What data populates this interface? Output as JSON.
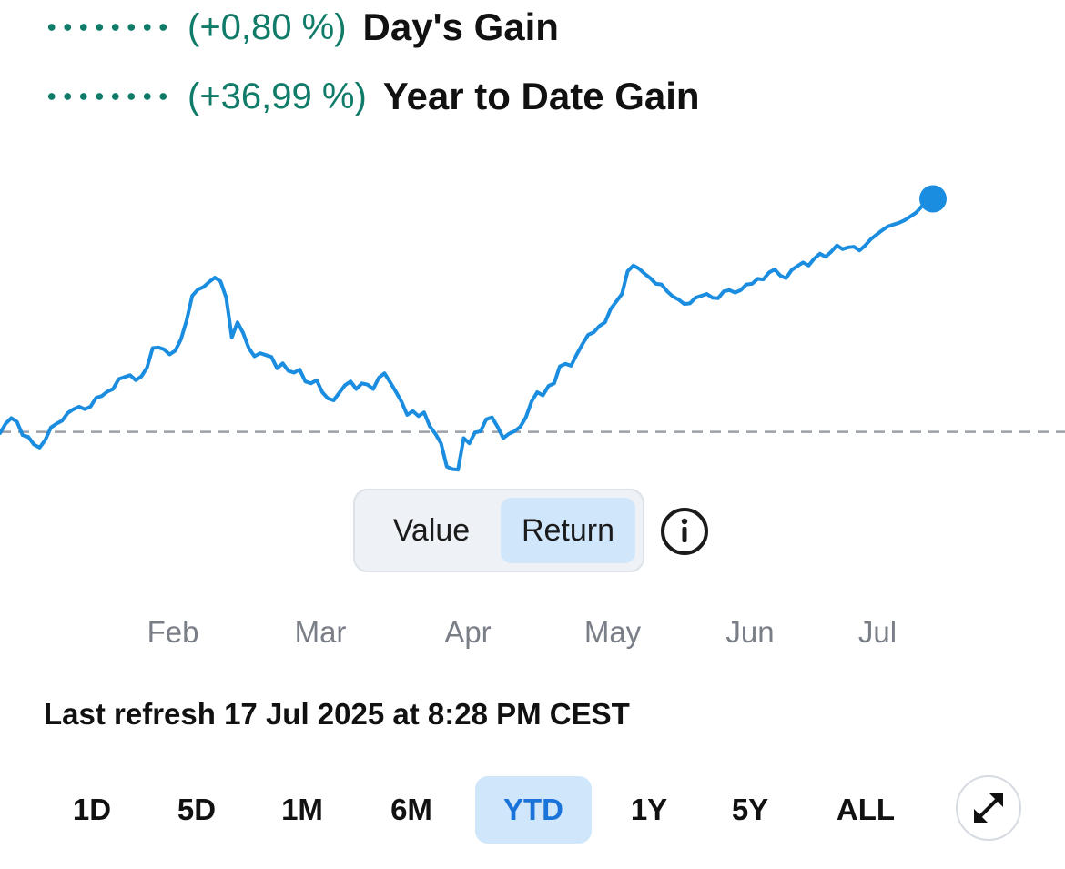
{
  "gains": [
    {
      "name": "day",
      "pct": "(+0,80 %)",
      "label": "Day's Gain",
      "color": "#0f7b68"
    },
    {
      "name": "ytd",
      "pct": "(+36,99 %)",
      "label": "Year to Date Gain",
      "color": "#0f7b68"
    }
  ],
  "toggle": {
    "value_label": "Value",
    "return_label": "Return",
    "selected": "Return"
  },
  "info_icon": "info-circle-icon",
  "refresh": "Last refresh 17 Jul 2025 at 8:28 PM CEST",
  "ranges": [
    "1D",
    "5D",
    "1M",
    "6M",
    "YTD",
    "1Y",
    "5Y",
    "ALL"
  ],
  "active_range": "YTD",
  "expand_icon": "expand-arrows-icon",
  "colors": {
    "line": "#1a8de0",
    "baseline": "#9ba1a8",
    "accent": "#1a73d9",
    "highlight": "#cfe6fb"
  },
  "chart_data": {
    "type": "line",
    "x_ticks": [
      "Feb",
      "Mar",
      "Apr",
      "May",
      "Jun",
      "Jul"
    ],
    "baseline": 0,
    "ylim": [
      -8,
      44
    ],
    "grid": false,
    "series": [
      {
        "values": [
          -0.2,
          1.3,
          2.2,
          1.6,
          -0.5,
          -0.8,
          -2.0,
          -2.5,
          -1.3,
          0.7,
          1.3,
          1.8,
          3.0,
          3.6,
          4.0,
          3.6,
          4.0,
          5.4,
          5.7,
          6.4,
          6.8,
          8.4,
          8.7,
          9.0,
          8.2,
          8.8,
          10.2,
          13.3,
          13.4,
          13.1,
          12.3,
          12.9,
          14.7,
          17.7,
          21.6,
          22.6,
          23.0,
          23.8,
          24.5,
          23.9,
          21.3,
          15.0,
          17.4,
          15.7,
          13.3,
          12.0,
          12.5,
          12.2,
          11.9,
          10.1,
          10.9,
          9.7,
          9.4,
          9.9,
          8.0,
          7.7,
          8.2,
          6.3,
          5.3,
          5.0,
          6.2,
          7.4,
          8.0,
          6.8,
          7.7,
          7.5,
          6.8,
          8.6,
          9.3,
          7.9,
          6.4,
          4.8,
          2.7,
          3.3,
          2.5,
          3.1,
          0.9,
          -0.3,
          -1.8,
          -5.5,
          -5.9,
          -6.0,
          -1.0,
          -1.8,
          -0.1,
          0.1,
          2.0,
          2.3,
          0.8,
          -1.0,
          -0.3,
          0.1,
          0.8,
          2.3,
          4.8,
          6.3,
          5.8,
          7.3,
          7.7,
          10.4,
          10.8,
          10.5,
          12.3,
          13.9,
          15.4,
          15.8,
          16.8,
          17.4,
          19.5,
          20.7,
          21.9,
          25.5,
          26.4,
          25.9,
          25.1,
          24.4,
          23.5,
          23.4,
          22.3,
          21.5,
          21.0,
          20.3,
          20.4,
          21.3,
          21.6,
          21.9,
          21.3,
          21.2,
          22.3,
          22.5,
          22.1,
          22.5,
          23.4,
          23.5,
          24.3,
          24.2,
          25.3,
          25.8,
          24.8,
          24.4,
          25.7,
          26.3,
          26.9,
          26.4,
          27.5,
          28.3,
          27.8,
          28.6,
          29.6,
          29.0,
          29.3,
          29.4,
          28.8,
          29.6,
          30.6,
          31.3,
          32.0,
          32.6,
          32.9,
          33.2,
          33.6,
          34.2,
          34.8,
          35.8,
          36.4,
          36.99
        ]
      }
    ]
  }
}
